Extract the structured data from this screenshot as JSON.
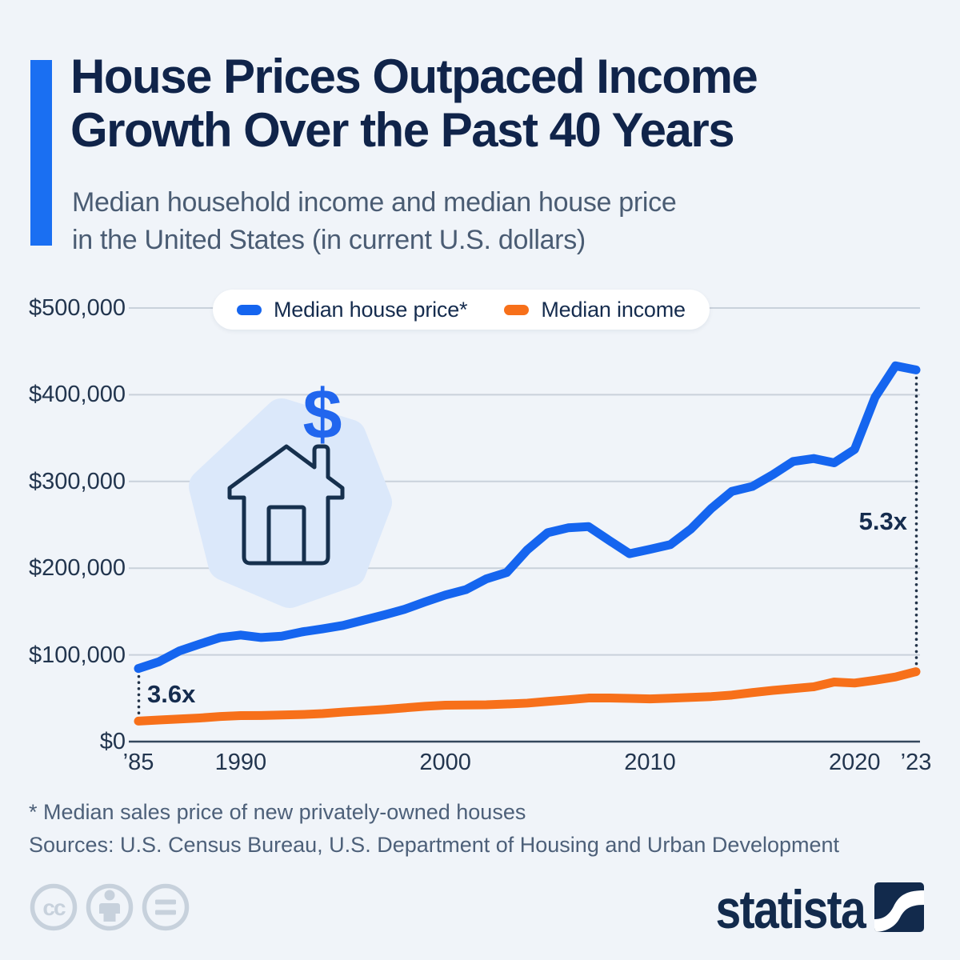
{
  "header": {
    "title_line1": "House Prices Outpaced Income",
    "title_line2": "Growth Over the Past 40 Years",
    "subtitle_line1": "Median household income and median house price",
    "subtitle_line2": "in the United States (in current U.S. dollars)"
  },
  "legend": {
    "house_price_label": "Median house price*",
    "income_label": "Median income"
  },
  "annotations": {
    "start_ratio": "3.6x",
    "end_ratio": "5.3x"
  },
  "house_icon": {
    "dollar_glyph": "$"
  },
  "footer": {
    "footnote": "* Median sales price of new privately-owned houses",
    "sources": "Sources: U.S. Census Bureau, U.S. Department of Housing and Urban Development",
    "cc_glyph": "cc",
    "brand": "statista"
  },
  "colors": {
    "background": "#f0f4f9",
    "accent_blue": "#1a6ff2",
    "title_navy": "#10244a",
    "subtitle_gray": "#4a5c73",
    "house_price_line": "#1565ef",
    "income_line": "#f7701a",
    "gridline": "#c9d1db",
    "axis_line": "#33475c",
    "dotted_annotation": "#223349",
    "annotation_text": "#152c4e",
    "footnote_text": "#4d6079",
    "license_icon_gray": "#c7d1dc",
    "brand_navy": "#122a4c",
    "house_outline": "#16304d",
    "house_blob": "#dbe8fa",
    "dollar_blue": "#2166ee",
    "legend_bg": "#ffffff"
  },
  "chart_data": {
    "type": "line",
    "title": "Median household income and median house price in the United States (in current U.S. dollars)",
    "x": [
      1985,
      1986,
      1987,
      1988,
      1989,
      1990,
      1991,
      1992,
      1993,
      1994,
      1995,
      1996,
      1997,
      1998,
      1999,
      2000,
      2001,
      2002,
      2003,
      2004,
      2005,
      2006,
      2007,
      2008,
      2009,
      2010,
      2011,
      2012,
      2013,
      2014,
      2015,
      2016,
      2017,
      2018,
      2019,
      2020,
      2021,
      2022,
      2023
    ],
    "series": [
      {
        "name": "Median house price*",
        "color": "#1565ef",
        "values": [
          84300,
          92000,
          104500,
          112500,
          120000,
          122900,
          120000,
          121500,
          126500,
          130000,
          133900,
          140000,
          146000,
          152500,
          161000,
          169000,
          175200,
          187600,
          195000,
          221000,
          240900,
          246500,
          247900,
          232100,
          216700,
          221800,
          227200,
          245200,
          268900,
          288500,
          294200,
          307800,
          323100,
          326400,
          321500,
          336900,
          397100,
          433300,
          428600
        ]
      },
      {
        "name": "Median income",
        "color": "#f7701a",
        "values": [
          23620,
          24897,
          26061,
          27225,
          28906,
          29943,
          30126,
          30636,
          31241,
          32264,
          34076,
          35492,
          37005,
          38885,
          40696,
          41990,
          42228,
          42409,
          43318,
          44334,
          46326,
          48201,
          50233,
          50303,
          49777,
          49276,
          50054,
          51017,
          51939,
          53657,
          56516,
          59039,
          61136,
          63179,
          68703,
          67521,
          70784,
          74580,
          80610
        ]
      }
    ],
    "y_ticks": [
      {
        "label": "$500,000",
        "value": 500000
      },
      {
        "label": "$400,000",
        "value": 400000
      },
      {
        "label": "$300,000",
        "value": 300000
      },
      {
        "label": "$200,000",
        "value": 200000
      },
      {
        "label": "$100,000",
        "value": 100000
      },
      {
        "label": "$0",
        "value": 0
      }
    ],
    "x_ticks": [
      {
        "label": "’85",
        "year": 1985
      },
      {
        "label": "1990",
        "year": 1990
      },
      {
        "label": "2000",
        "year": 2000
      },
      {
        "label": "2010",
        "year": 2010
      },
      {
        "label": "2020",
        "year": 2020
      },
      {
        "label": "’23",
        "year": 2023
      }
    ],
    "ylim": [
      0,
      500000
    ],
    "xlim": [
      1985,
      2023
    ],
    "grid": true,
    "legend_position": "top",
    "ratio_annotations": [
      {
        "year": 1985,
        "text": "3.6x"
      },
      {
        "year": 2023,
        "text": "5.3x"
      }
    ]
  }
}
